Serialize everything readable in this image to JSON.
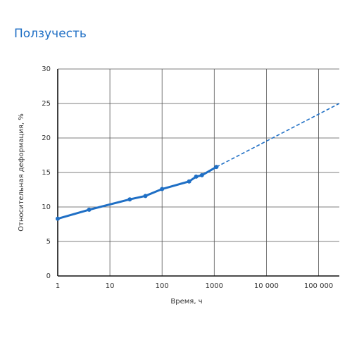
{
  "chart_data": {
    "type": "line",
    "title": "Ползучесть",
    "x_label": "Время, ч",
    "y_label": "Относительная деформация, %",
    "xscale": "log",
    "grid": true,
    "xlim": [
      1,
      250000
    ],
    "ylim": [
      0,
      30
    ],
    "xticks": [
      1,
      10,
      100,
      1000,
      {
        "value": 10000,
        "label": "10 000"
      },
      {
        "value": 100000,
        "label": "100 000"
      }
    ],
    "yticks": [
      0,
      5,
      10,
      15,
      20,
      25,
      30
    ],
    "series": [
      {
        "color": "#1f6fc5",
        "style": "solid",
        "markers": true,
        "x": [
          1,
          4,
          24,
          48,
          100,
          330,
          450,
          580,
          1100
        ],
        "values": [
          8.3,
          9.6,
          11.1,
          11.6,
          12.6,
          13.7,
          14.4,
          14.6,
          15.8
        ]
      },
      {
        "color": "#1f6fc5",
        "style": "dashed",
        "markers": false,
        "x": [
          1100,
          250000
        ],
        "values": [
          15.8,
          25
        ]
      }
    ]
  }
}
